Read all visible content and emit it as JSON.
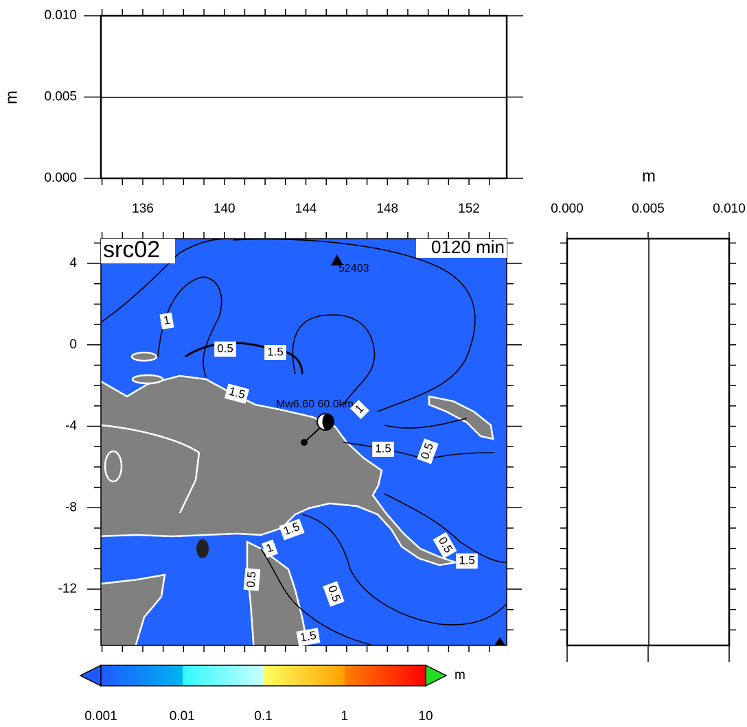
{
  "top_panel": {
    "y_label": "m",
    "y_ticks": [
      "0.010",
      "0.005",
      "0.000"
    ],
    "x_ticks": [
      "136",
      "140",
      "144",
      "148",
      "152"
    ]
  },
  "right_panel": {
    "x_label": "m",
    "x_ticks": [
      "0.000",
      "0.005",
      "0.010"
    ]
  },
  "map": {
    "title": "src02",
    "time": "0120 min",
    "y_ticks": [
      "4",
      "0",
      "-4",
      "-8",
      "-12"
    ],
    "station": "52403",
    "source_label": "Mw6.60  60.0km",
    "contour_labels": [
      "1",
      "0.5",
      "1.5",
      "1.5",
      "1",
      "1.5",
      "0.5",
      "1.5",
      "1",
      "0.5",
      "0.5",
      "1.5",
      "1.5",
      "0.5"
    ]
  },
  "colorbar": {
    "unit": "m",
    "ticks": [
      "0.001",
      "0.01",
      "0.1",
      "1",
      "10"
    ]
  }
}
